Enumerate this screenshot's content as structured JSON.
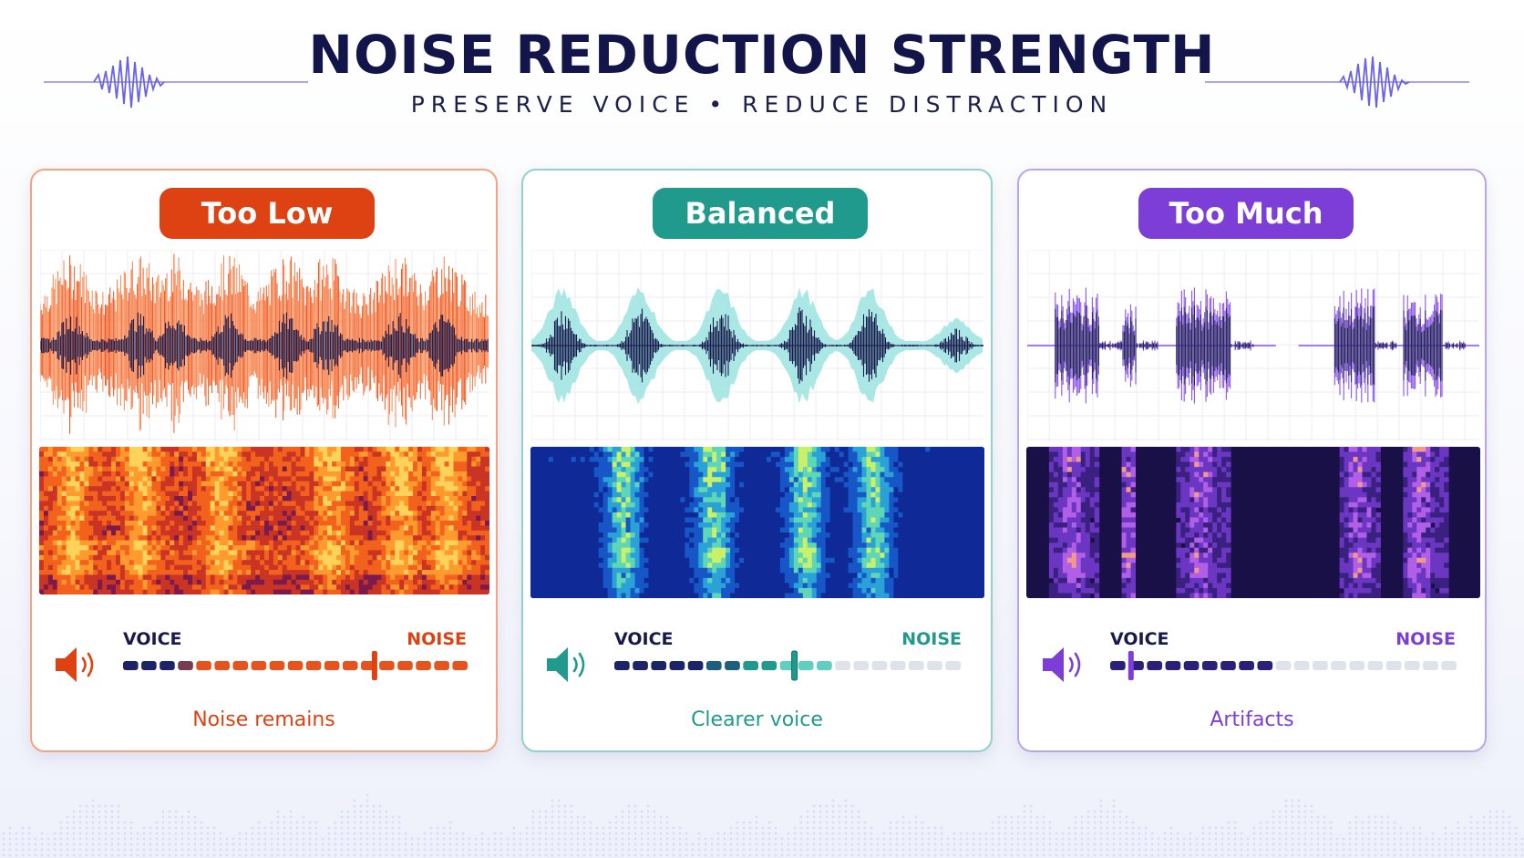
{
  "header": {
    "title": "NOISE REDUCTION STRENGTH",
    "subtitle": "PRESERVE VOICE  •  REDUCE DISTRACTION"
  },
  "panels": [
    {
      "id": "low",
      "badge": "Too Low",
      "voice_label": "VOICE",
      "noise_label": "NOISE",
      "caption": "Noise remains",
      "accent": "#de4213",
      "meter_position": 0.73,
      "icon": "speaker-icon"
    },
    {
      "id": "balanced",
      "badge": "Balanced",
      "voice_label": "VOICE",
      "noise_label": "NOISE",
      "caption": "Clearer voice",
      "accent": "#1f9a8d",
      "meter_position": 0.52,
      "icon": "speaker-icon"
    },
    {
      "id": "much",
      "badge": "Too Much",
      "voice_label": "VOICE",
      "noise_label": "NOISE",
      "caption": "Artifacts",
      "accent": "#7c3ed6",
      "meter_position": 0.06,
      "icon": "speaker-icon"
    }
  ],
  "colors": {
    "title": "#13154a",
    "voice_wave": "#171a4d",
    "low_noise": "#f25a22",
    "balanced_halo": "#8fe0dc",
    "much_wave": "#8a55e8"
  }
}
